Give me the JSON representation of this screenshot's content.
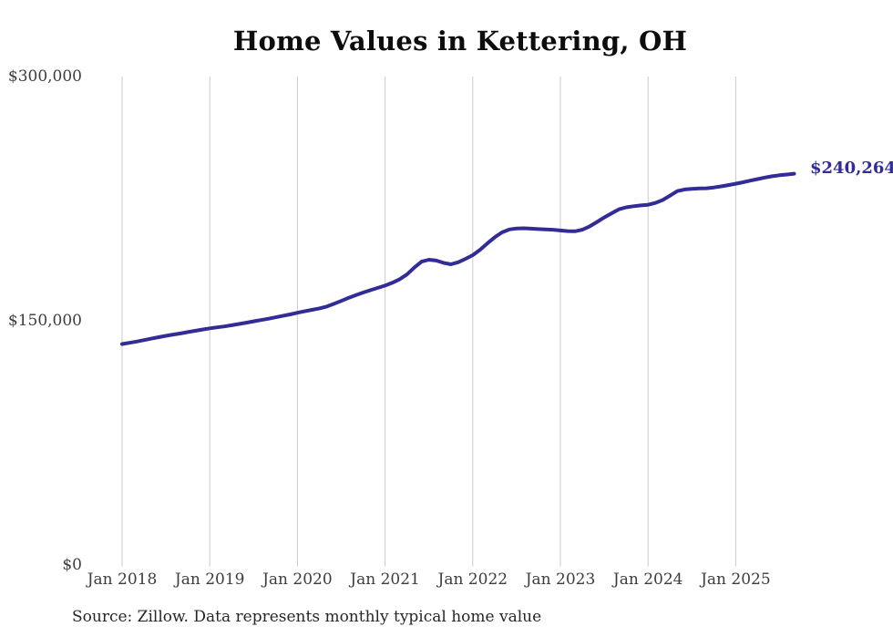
{
  "page": {
    "title": "Home Values in Kettering, OH",
    "source_note": "Source: Zillow. Data represents monthly typical home value"
  },
  "chart_data": {
    "type": "line",
    "title": "Home Values in Kettering, OH",
    "series_name": "Monthly typical home value",
    "x_start": "2018-01",
    "x_end": "2025-09",
    "frequency": "monthly",
    "values": [
      135600,
      136300,
      137100,
      138000,
      138900,
      139800,
      140600,
      141400,
      142100,
      142900,
      143700,
      144500,
      145200,
      145800,
      146400,
      147100,
      147900,
      148700,
      149500,
      150300,
      151100,
      152000,
      152900,
      153800,
      154800,
      155700,
      156600,
      157500,
      158600,
      160300,
      162100,
      163900,
      165600,
      167200,
      168700,
      170100,
      171500,
      173200,
      175400,
      178400,
      182600,
      186200,
      187400,
      186900,
      185500,
      184600,
      185800,
      187900,
      190200,
      193500,
      197400,
      201200,
      204200,
      206000,
      206600,
      206700,
      206500,
      206200,
      206000,
      205800,
      205400,
      205000,
      204900,
      205800,
      207900,
      210600,
      213400,
      215900,
      218400,
      219600,
      220300,
      220800,
      221200,
      222300,
      224100,
      226800,
      229600,
      230600,
      231000,
      231200,
      231300,
      231800,
      232500,
      233300,
      234100,
      235000,
      236000,
      237000,
      237900,
      238700,
      239300,
      239800,
      240264
    ],
    "end_value": 240264,
    "end_label": "$240,264",
    "x_ticks": [
      "Jan 2018",
      "Jan 2019",
      "Jan 2020",
      "Jan 2021",
      "Jan 2022",
      "Jan 2023",
      "Jan 2024",
      "Jan 2025"
    ],
    "y_ticks": [
      {
        "label": "$300,000",
        "value": 300000
      },
      {
        "label": "$150,000",
        "value": 150000
      },
      {
        "label": "$0",
        "value": 0
      }
    ],
    "ylim": [
      0,
      300000
    ],
    "grid": "vertical-only",
    "legend": "none",
    "line_color": "#312c96",
    "grid_color": "#cbcbcb",
    "tick_text_color": "#3d3d3d"
  }
}
